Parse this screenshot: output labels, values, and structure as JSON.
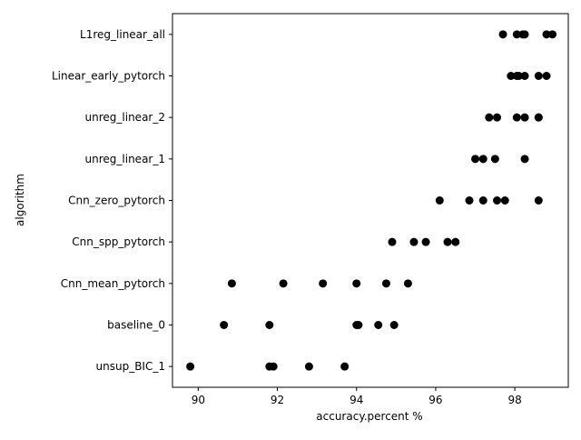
{
  "chart_data": {
    "type": "scatter",
    "xlabel": "accuracy.percent %",
    "ylabel": "algorithm",
    "xlim": [
      89.35,
      99.35
    ],
    "x_ticks": [
      90,
      92,
      94,
      96,
      98
    ],
    "x_tick_labels": [
      "90",
      "92",
      "94",
      "96",
      "98"
    ],
    "grid": false,
    "legend": "none",
    "marker_color": "#000000",
    "categories": [
      "unsup_BIC_1",
      "baseline_0",
      "Cnn_mean_pytorch",
      "Cnn_spp_pytorch",
      "Cnn_zero_pytorch",
      "unreg_linear_1",
      "unreg_linear_2",
      "Linear_early_pytorch",
      "L1reg_linear_all"
    ],
    "points": [
      {
        "category": "L1reg_linear_all",
        "x": [
          97.7,
          98.05,
          98.2,
          98.25,
          98.8,
          98.95
        ]
      },
      {
        "category": "Linear_early_pytorch",
        "x": [
          97.9,
          98.05,
          98.1,
          98.25,
          98.6,
          98.8
        ]
      },
      {
        "category": "unreg_linear_2",
        "x": [
          97.35,
          97.55,
          98.05,
          98.25,
          98.6,
          98.6
        ]
      },
      {
        "category": "unreg_linear_1",
        "x": [
          97.0,
          97.2,
          97.5,
          98.25
        ]
      },
      {
        "category": "Cnn_zero_pytorch",
        "x": [
          96.1,
          96.85,
          97.2,
          97.55,
          97.75,
          98.6
        ]
      },
      {
        "category": "Cnn_spp_pytorch",
        "x": [
          94.9,
          95.45,
          95.75,
          96.3,
          96.5
        ]
      },
      {
        "category": "Cnn_mean_pytorch",
        "x": [
          90.85,
          92.15,
          93.15,
          94.0,
          94.75,
          95.3
        ]
      },
      {
        "category": "baseline_0",
        "x": [
          90.65,
          91.8,
          94.0,
          94.05,
          94.55,
          94.95
        ]
      },
      {
        "category": "unsup_BIC_1",
        "x": [
          89.8,
          91.8,
          91.9,
          92.8,
          93.7
        ]
      }
    ]
  }
}
